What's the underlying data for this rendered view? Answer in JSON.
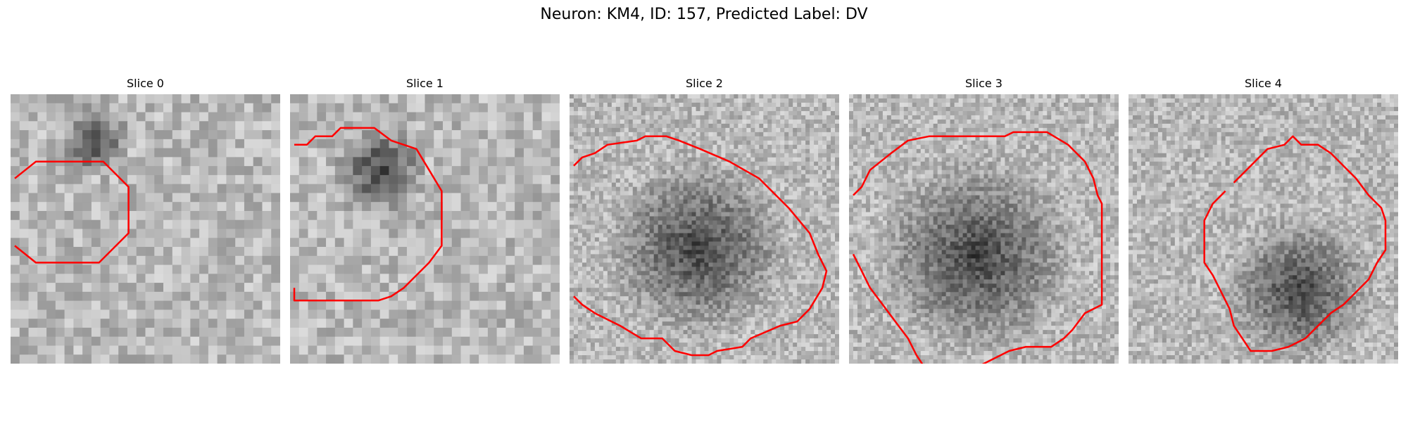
{
  "figure": {
    "title": "Neuron: KM4, ID: 157, Predicted Label: DV",
    "contour_color": "#ff0000"
  },
  "panels": [
    {
      "title": "Slice 0",
      "contour": [
        [
          1,
          20
        ],
        [
          6,
          16
        ],
        [
          22,
          16
        ],
        [
          28,
          22
        ],
        [
          28,
          33
        ],
        [
          21,
          40
        ],
        [
          6,
          40
        ],
        [
          1,
          36
        ]
      ],
      "blob": {
        "cx": 19,
        "cy": 10,
        "r": 9
      }
    },
    {
      "title": "Slice 1",
      "contour": [
        [
          1,
          12
        ],
        [
          4,
          12
        ],
        [
          6,
          10
        ],
        [
          10,
          10
        ],
        [
          12,
          8
        ],
        [
          20,
          8
        ],
        [
          24,
          11
        ],
        [
          30,
          13
        ],
        [
          33,
          18
        ],
        [
          36,
          23
        ],
        [
          36,
          36
        ],
        [
          33,
          40
        ],
        [
          27,
          46
        ],
        [
          24,
          48
        ],
        [
          21,
          49
        ],
        [
          1,
          49
        ],
        [
          1,
          46
        ]
      ],
      "blob": {
        "cx": 20,
        "cy": 17,
        "r": 12
      }
    },
    {
      "title": "Slice 2",
      "contour": [
        [
          1,
          17
        ],
        [
          3,
          15
        ],
        [
          6,
          14
        ],
        [
          9,
          12
        ],
        [
          16,
          11
        ],
        [
          18,
          10
        ],
        [
          23,
          10
        ],
        [
          26,
          11
        ],
        [
          31,
          13
        ],
        [
          38,
          16
        ],
        [
          45,
          20
        ],
        [
          52,
          27
        ],
        [
          57,
          33
        ],
        [
          59,
          38
        ],
        [
          61,
          42
        ],
        [
          60,
          46
        ],
        [
          57,
          51
        ],
        [
          54,
          54
        ],
        [
          50,
          55
        ],
        [
          43,
          58
        ],
        [
          41,
          60
        ],
        [
          35,
          61
        ],
        [
          33,
          62
        ],
        [
          29,
          62
        ],
        [
          25,
          61
        ],
        [
          22,
          58
        ],
        [
          17,
          58
        ],
        [
          12,
          55
        ],
        [
          8,
          53
        ],
        [
          6,
          52
        ],
        [
          3,
          50
        ],
        [
          1,
          48
        ]
      ],
      "blob": {
        "cx": 30,
        "cy": 36,
        "r": 22
      }
    },
    {
      "title": "Slice 3",
      "contour": [
        [
          1,
          24
        ],
        [
          3,
          22
        ],
        [
          5,
          18
        ],
        [
          10,
          14
        ],
        [
          14,
          11
        ],
        [
          19,
          10
        ],
        [
          37,
          10
        ],
        [
          39,
          9
        ],
        [
          47,
          9
        ],
        [
          52,
          12
        ],
        [
          56,
          16
        ],
        [
          58,
          20
        ],
        [
          59,
          24
        ],
        [
          60,
          26
        ],
        [
          60,
          50
        ],
        [
          56,
          52
        ],
        [
          53,
          56
        ],
        [
          51,
          58
        ],
        [
          48,
          60
        ],
        [
          42,
          60
        ],
        [
          38,
          61
        ],
        [
          34,
          63
        ],
        [
          30,
          65
        ],
        [
          24,
          66
        ],
        [
          18,
          65
        ],
        [
          16,
          62
        ],
        [
          14,
          58
        ],
        [
          11,
          54
        ],
        [
          8,
          50
        ],
        [
          5,
          46
        ],
        [
          3,
          42
        ],
        [
          1,
          38
        ]
      ],
      "blob": {
        "cx": 30,
        "cy": 38,
        "r": 24
      }
    },
    {
      "title": "Slice 4",
      "contour": [
        [
          25,
          21
        ],
        [
          28,
          18
        ],
        [
          31,
          15
        ],
        [
          33,
          13
        ],
        [
          37,
          12
        ],
        [
          39,
          10
        ],
        [
          41,
          12
        ],
        [
          45,
          12
        ],
        [
          48,
          14
        ],
        [
          51,
          17
        ],
        [
          54,
          20
        ],
        [
          57,
          24
        ],
        [
          60,
          27
        ],
        [
          61,
          30
        ],
        [
          61,
          37
        ],
        [
          59,
          40
        ],
        [
          57,
          44
        ],
        [
          54,
          47
        ],
        [
          51,
          50
        ],
        [
          48,
          52
        ],
        [
          45,
          55
        ],
        [
          42,
          58
        ],
        [
          38,
          60
        ],
        [
          34,
          61
        ],
        [
          29,
          61
        ],
        [
          27,
          58
        ],
        [
          25,
          55
        ],
        [
          24,
          51
        ],
        [
          22,
          47
        ],
        [
          20,
          43
        ],
        [
          18,
          40
        ],
        [
          18,
          30
        ],
        [
          20,
          26
        ],
        [
          23,
          23
        ]
      ],
      "blob": {
        "cx": 40,
        "cy": 46,
        "r": 18
      }
    }
  ]
}
